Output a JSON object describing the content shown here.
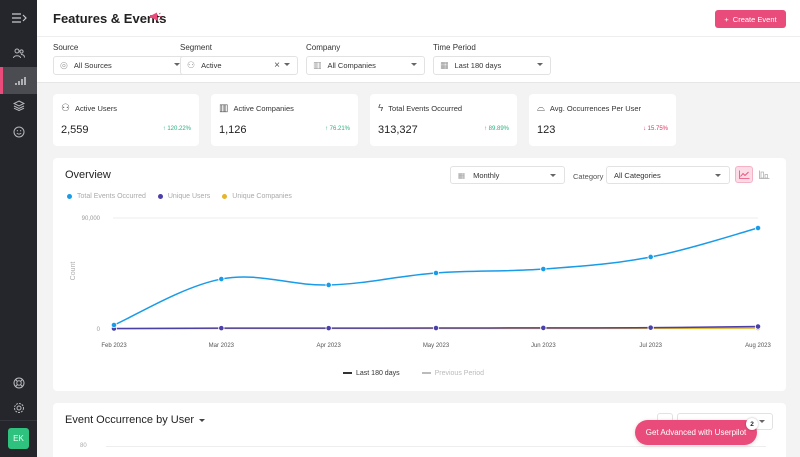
{
  "sidebar": {
    "toggle_icon": "menu-expand-icon",
    "items": [
      {
        "name": "users",
        "icon": "users-icon",
        "active": false
      },
      {
        "name": "analytics",
        "icon": "bar-chart-icon",
        "active": true
      },
      {
        "name": "layers",
        "icon": "layers-icon",
        "active": false
      },
      {
        "name": "feedback",
        "icon": "smiley-icon",
        "active": false
      }
    ],
    "bottom_items": [
      {
        "name": "help",
        "icon": "lifebuoy-icon"
      },
      {
        "name": "settings",
        "icon": "gear-icon"
      }
    ],
    "avatar_initials": "EK"
  },
  "header": {
    "title": "Features & Events",
    "title_icon": "megaphone-icon",
    "create_button": "Create Event"
  },
  "filters": {
    "source": {
      "label": "Source",
      "value": "All Sources"
    },
    "segment": {
      "label": "Segment",
      "value": "Active"
    },
    "company": {
      "label": "Company",
      "value": "All Companies"
    },
    "time_period": {
      "label": "Time Period",
      "value": "Last 180 days"
    }
  },
  "kpis": [
    {
      "label": "Active Users",
      "value": "2,559",
      "delta": "120.22%",
      "direction": "up"
    },
    {
      "label": "Active Companies",
      "value": "1,126",
      "delta": "76.21%",
      "direction": "up"
    },
    {
      "label": "Total Events Occurred",
      "value": "313,327",
      "delta": "89.89%",
      "direction": "up"
    },
    {
      "label": "Avg. Occurrences Per User",
      "value": "123",
      "delta": "15.75%",
      "direction": "down"
    }
  ],
  "overview": {
    "title": "Overview",
    "interval": "Monthly",
    "category_label": "Category",
    "category_value": "All Categories",
    "legend": [
      "Total Events Occurred",
      "Unique Users",
      "Unique Companies"
    ],
    "bottom_legend": {
      "current": "Last 180 days",
      "previous": "Previous Period"
    },
    "y_label": "Count",
    "y_ticks": [
      "90,000",
      "0"
    ]
  },
  "chart_data": {
    "type": "line",
    "title": "Overview",
    "xlabel": "",
    "ylabel": "Count",
    "ylim": [
      0,
      90000
    ],
    "categories": [
      "Feb 2023",
      "Mar 2023",
      "Apr 2023",
      "May 2023",
      "Jun 2023",
      "Jul 2023",
      "Aug 2023"
    ],
    "series": [
      {
        "name": "Total Events Occurred",
        "color": "#1a9be8",
        "values": [
          3200,
          40500,
          35700,
          45400,
          48600,
          58400,
          81900
        ]
      },
      {
        "name": "Unique Users",
        "color": "#4b3fa8",
        "values": [
          400,
          700,
          700,
          800,
          900,
          1100,
          2000
        ]
      },
      {
        "name": "Unique Companies",
        "color": "#e5b52a",
        "values": [
          300,
          500,
          500,
          500,
          500,
          600,
          800
        ]
      }
    ],
    "grid": true,
    "legend_position": "top"
  },
  "event_occurrence": {
    "title": "Event Occurrence by User",
    "y_tick": "80"
  },
  "promo": {
    "label": "Get Advanced with Userpilot",
    "badge": "2"
  },
  "colors": {
    "accent": "#e94c7a",
    "sidebar": "#24262b",
    "up": "#26b27c",
    "down": "#e0305e"
  }
}
